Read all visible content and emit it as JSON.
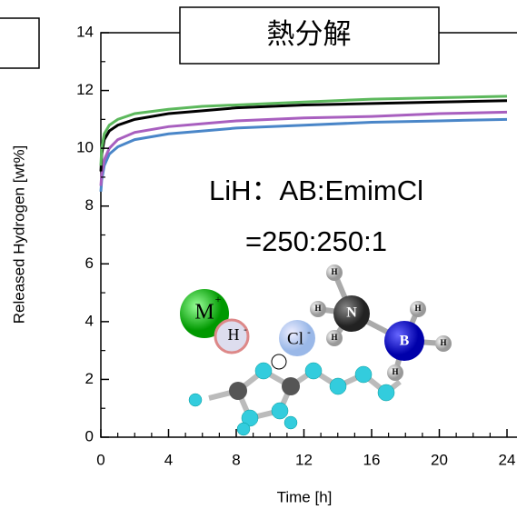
{
  "chart_data": {
    "type": "line",
    "title": "熱分解",
    "annotations": [
      "LiH：AB:EmimCl",
      "=250:250:1"
    ],
    "atom_labels": [
      "M",
      "+",
      "H",
      "-",
      "Cl",
      "-",
      "N",
      "B",
      "H",
      "H",
      "H",
      "H",
      "H",
      "H"
    ],
    "xlabel": "Time [h]",
    "ylabel": "Released Hydrogen [wt%]",
    "x": [
      0,
      0.05,
      0.2,
      0.5,
      1,
      2,
      4,
      6,
      8,
      12,
      16,
      20,
      24
    ],
    "series": [
      {
        "color": "#5cb85c",
        "values": [
          9.4,
          10.0,
          10.5,
          10.8,
          11.0,
          11.2,
          11.35,
          11.45,
          11.5,
          11.6,
          11.7,
          11.75,
          11.8
        ]
      },
      {
        "color": "#000000",
        "values": [
          9.2,
          9.8,
          10.3,
          10.6,
          10.8,
          11.0,
          11.2,
          11.3,
          11.4,
          11.5,
          11.55,
          11.6,
          11.65
        ]
      },
      {
        "color": "#a85fbf",
        "values": [
          8.7,
          9.1,
          9.6,
          10.0,
          10.3,
          10.55,
          10.75,
          10.85,
          10.95,
          11.05,
          11.1,
          11.2,
          11.25
        ]
      },
      {
        "color": "#4a86c8",
        "values": [
          8.5,
          8.9,
          9.4,
          9.8,
          10.05,
          10.3,
          10.5,
          10.6,
          10.7,
          10.8,
          10.9,
          10.95,
          11.0
        ]
      }
    ],
    "xlim": [
      0,
      24
    ],
    "xticks": [
      0,
      4,
      8,
      12,
      16,
      20,
      24
    ],
    "xminorticks": [
      1,
      2,
      3,
      5,
      6,
      7,
      9,
      10,
      11,
      13,
      14,
      15,
      17,
      18,
      19,
      21,
      22,
      23
    ],
    "ylim": [
      0,
      14
    ],
    "yticks": [
      0,
      2,
      4,
      6,
      8,
      10,
      12,
      14
    ],
    "yminorticks": [
      1,
      3,
      5,
      7,
      9,
      11,
      13
    ]
  }
}
